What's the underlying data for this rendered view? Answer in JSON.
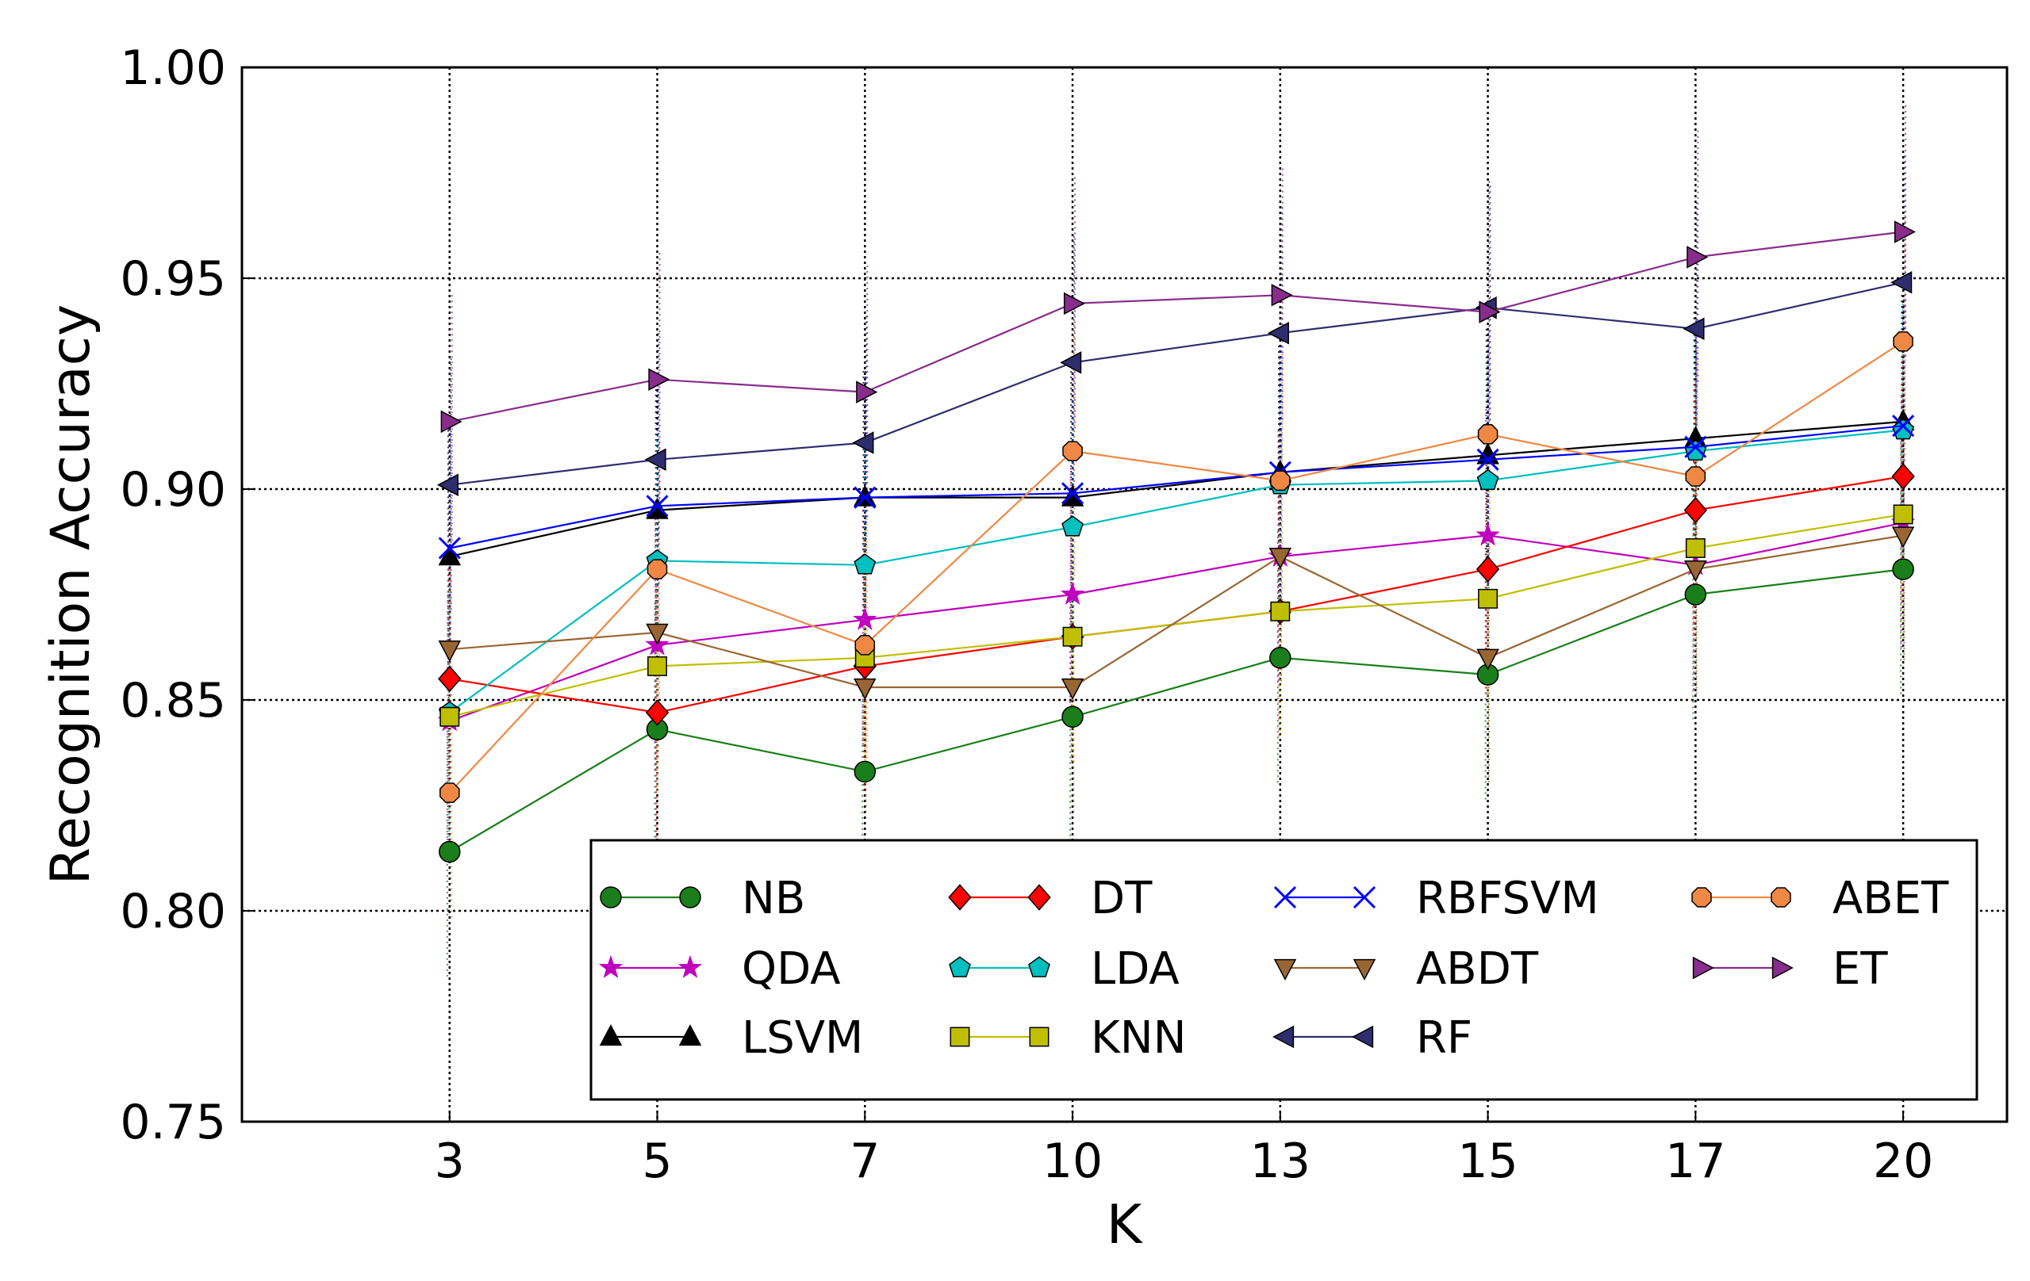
{
  "chart_data": {
    "type": "line",
    "title": "",
    "xlabel": "K",
    "ylabel": "Recognition Accuracy",
    "categories": [
      "3",
      "5",
      "7",
      "10",
      "13",
      "15",
      "17",
      "20"
    ],
    "yticks": [
      "0.75",
      "0.80",
      "0.85",
      "0.90",
      "0.95",
      "1.00"
    ],
    "ylim": [
      0.75,
      1.0
    ],
    "xlim": [
      0,
      8.5
    ],
    "grid": true,
    "legend_position": "bottom-right",
    "series": [
      {
        "name": "NB",
        "color": "#1a7f1a",
        "marker": "circle",
        "values": [
          0.814,
          0.843,
          0.833,
          0.846,
          0.86,
          0.856,
          0.875,
          0.881
        ],
        "errors": [
          0.03,
          0.03,
          0.03,
          0.03,
          0.03,
          0.03,
          0.03,
          0.03
        ]
      },
      {
        "name": "QDA",
        "color": "#bf00bf",
        "marker": "star",
        "values": [
          0.845,
          0.863,
          0.869,
          0.875,
          0.884,
          0.889,
          0.882,
          0.892
        ],
        "errors": [
          0.03,
          0.03,
          0.03,
          0.03,
          0.03,
          0.03,
          0.03,
          0.03
        ]
      },
      {
        "name": "LSVM",
        "color": "#000000",
        "marker": "triangle-up",
        "values": [
          0.884,
          0.895,
          0.898,
          0.898,
          0.904,
          0.908,
          0.912,
          0.916
        ],
        "errors": [
          0.03,
          0.03,
          0.03,
          0.03,
          0.03,
          0.03,
          0.03,
          0.03
        ]
      },
      {
        "name": "DT",
        "color": "#ff0000",
        "marker": "diamond",
        "values": [
          0.855,
          0.847,
          0.858,
          0.865,
          0.871,
          0.881,
          0.895,
          0.903
        ],
        "errors": [
          0.03,
          0.03,
          0.03,
          0.03,
          0.03,
          0.03,
          0.03,
          0.03
        ]
      },
      {
        "name": "LDA",
        "color": "#00bfbf",
        "marker": "pentagon",
        "values": [
          0.847,
          0.883,
          0.882,
          0.891,
          0.901,
          0.902,
          0.909,
          0.914
        ],
        "errors": [
          0.03,
          0.03,
          0.03,
          0.03,
          0.03,
          0.03,
          0.03,
          0.03
        ]
      },
      {
        "name": "KNN",
        "color": "#bfbf00",
        "marker": "square",
        "values": [
          0.846,
          0.858,
          0.86,
          0.865,
          0.871,
          0.874,
          0.886,
          0.894
        ],
        "errors": [
          0.03,
          0.03,
          0.03,
          0.03,
          0.03,
          0.03,
          0.03,
          0.03
        ]
      },
      {
        "name": "RBFSVM",
        "color": "#0000ff",
        "marker": "x",
        "values": [
          0.886,
          0.896,
          0.898,
          0.899,
          0.904,
          0.907,
          0.91,
          0.915
        ],
        "errors": [
          0.03,
          0.03,
          0.03,
          0.03,
          0.03,
          0.03,
          0.03,
          0.03
        ]
      },
      {
        "name": "ABDT",
        "color": "#996633",
        "marker": "triangle-down",
        "values": [
          0.862,
          0.866,
          0.853,
          0.853,
          0.884,
          0.86,
          0.881,
          0.889
        ],
        "errors": [
          0.03,
          0.03,
          0.03,
          0.03,
          0.03,
          0.03,
          0.03,
          0.03
        ]
      },
      {
        "name": "RF",
        "color": "#2e2e6e",
        "marker": "triangle-left",
        "values": [
          0.901,
          0.907,
          0.911,
          0.93,
          0.937,
          0.943,
          0.938,
          0.949
        ],
        "errors": [
          0.03,
          0.03,
          0.03,
          0.03,
          0.03,
          0.03,
          0.03,
          0.03
        ]
      },
      {
        "name": "ABET",
        "color": "#ee8844",
        "marker": "octagon",
        "values": [
          0.828,
          0.881,
          0.863,
          0.909,
          0.902,
          0.913,
          0.903,
          0.935
        ],
        "errors": [
          0.03,
          0.03,
          0.03,
          0.03,
          0.03,
          0.03,
          0.03,
          0.03
        ]
      },
      {
        "name": "ET",
        "color": "#882d8c",
        "marker": "triangle-right",
        "values": [
          0.916,
          0.926,
          0.923,
          0.944,
          0.946,
          0.942,
          0.955,
          0.961
        ],
        "errors": [
          0.03,
          0.03,
          0.03,
          0.03,
          0.03,
          0.03,
          0.03,
          0.03
        ]
      }
    ]
  }
}
